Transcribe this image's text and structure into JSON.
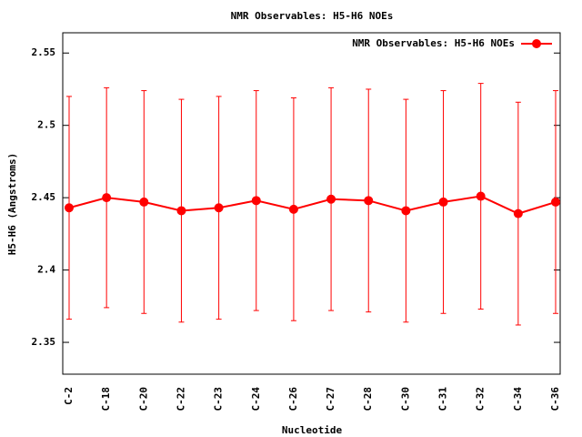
{
  "chart_data": {
    "type": "errorbar-line",
    "title": "NMR Observables: H5-H6 NOEs",
    "x_label": "Nucleotide",
    "y_label": "H5-H6 (Angstroms)",
    "categories": [
      "C-2",
      "C-18",
      "C-20",
      "C-22",
      "C-23",
      "C-24",
      "C-26",
      "C-27",
      "C-28",
      "C-30",
      "C-31",
      "C-32",
      "C-34",
      "C-36"
    ],
    "series": [
      {
        "name": "NMR Observables: H5-H6 NOEs",
        "color": "#ff0000",
        "values": [
          2.443,
          2.45,
          2.447,
          2.441,
          2.443,
          2.448,
          2.442,
          2.449,
          2.448,
          2.441,
          2.447,
          2.451,
          2.439,
          2.447
        ],
        "errors": [
          0.077,
          0.076,
          0.077,
          0.077,
          0.077,
          0.076,
          0.077,
          0.077,
          0.077,
          0.077,
          0.077,
          0.078,
          0.077,
          0.077
        ]
      }
    ],
    "ylim": [
      2.328,
      2.564
    ],
    "yticks": [
      2.35,
      2.4,
      2.45,
      2.5,
      2.55
    ],
    "legend": "top-right"
  }
}
